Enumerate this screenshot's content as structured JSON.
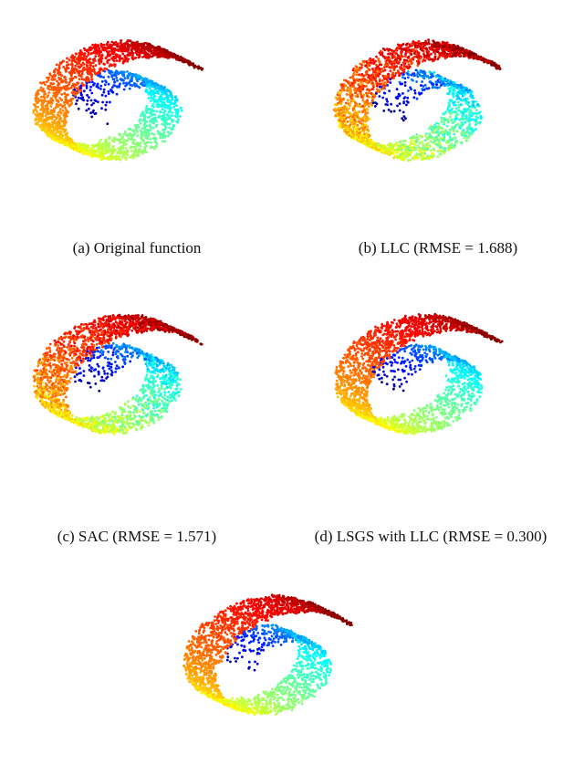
{
  "figure": {
    "captions": [
      "(a) Original function",
      "(b) LLC (RMSE = 1.688)",
      "(c) SAC (RMSE = 1.571)",
      "(d) LSGS with LLC (RMSE = 0.300)"
    ]
  },
  "chart_data": [
    {
      "type": "scatter",
      "title": "(a) Original function",
      "description_of_data": "Swiss-roll point cloud colored by function value along the roll (jet colormap: dark blue at inner end to dark red at outer end)",
      "method": "Original function",
      "rmse": null,
      "colormap": "jet",
      "noise": 0.0,
      "grid": false,
      "axes_visible": false
    },
    {
      "type": "scatter",
      "title": "(b) LLC (RMSE = 1.688)",
      "method": "LLC",
      "rmse": 1.688,
      "colormap": "jet",
      "noise": 0.07,
      "grid": false,
      "axes_visible": false
    },
    {
      "type": "scatter",
      "title": "(c) SAC (RMSE = 1.571)",
      "method": "SAC",
      "rmse": 1.571,
      "colormap": "jet",
      "noise": 0.06,
      "grid": false,
      "axes_visible": false
    },
    {
      "type": "scatter",
      "title": "(d) LSGS with LLC (RMSE = 0.300)",
      "method": "LSGS with LLC",
      "rmse": 0.3,
      "colormap": "jet",
      "noise": 0.01,
      "grid": false,
      "axes_visible": false
    },
    {
      "type": "scatter",
      "title": "",
      "method": "",
      "rmse": null,
      "colormap": "jet",
      "noise": 0.015,
      "grid": false,
      "axes_visible": false
    }
  ]
}
